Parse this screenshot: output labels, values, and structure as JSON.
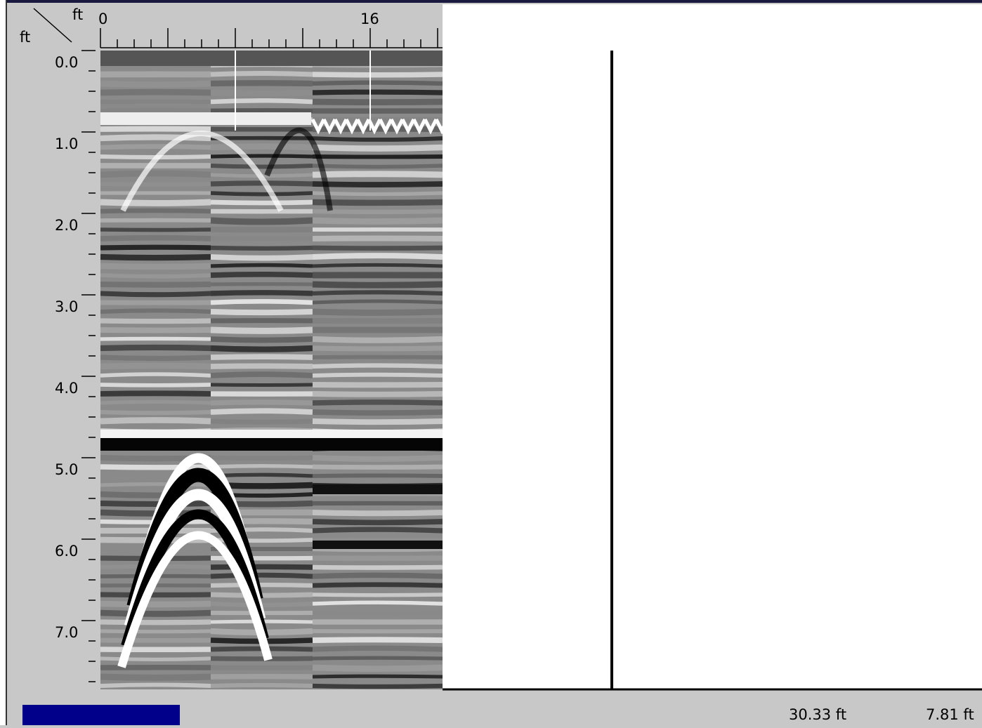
{
  "ruler": {
    "x_unit": "ft",
    "y_unit": "ft",
    "x_labels": [
      "0",
      "16"
    ],
    "y_labels": [
      "0.0",
      "1.0",
      "2.0",
      "3.0",
      "4.0",
      "5.0",
      "6.0",
      "7.0"
    ]
  },
  "status": {
    "distance": "30.33 ft",
    "depth": "7.81 ft"
  }
}
